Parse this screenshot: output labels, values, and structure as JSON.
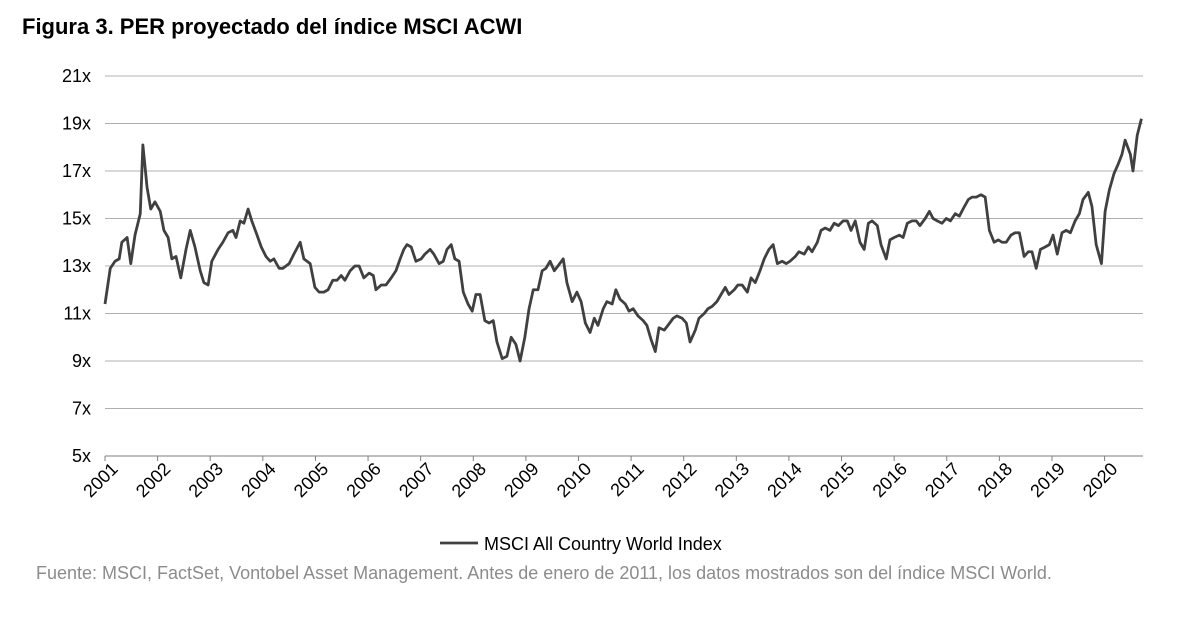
{
  "chart_data": {
    "type": "line",
    "title": "Figura 3. PER proyectado del índice MSCI ACWI",
    "source": "Fuente: MSCI, FactSet, Vontobel Asset Management. Antes de enero de 2011, los datos mostrados son del índice MSCI World.",
    "xlim": [
      2001,
      2020.73
    ],
    "xticks": [
      2001,
      2002,
      2003,
      2004,
      2005,
      2006,
      2007,
      2008,
      2009,
      2010,
      2011,
      2012,
      2013,
      2014,
      2015,
      2016,
      2017,
      2018,
      2019,
      2020
    ],
    "ylim": [
      5,
      21
    ],
    "yticks": [
      {
        "value": 5,
        "label": "5x"
      },
      {
        "value": 7,
        "label": "7x"
      },
      {
        "value": 9,
        "label": "9x"
      },
      {
        "value": 11,
        "label": "11x"
      },
      {
        "value": 13,
        "label": "13x"
      },
      {
        "value": 15,
        "label": "15x"
      },
      {
        "value": 17,
        "label": "17x"
      },
      {
        "value": 19,
        "label": "19x"
      },
      {
        "value": 21,
        "label": "21x"
      }
    ],
    "grid": true,
    "legend": "bottom",
    "x": [
      2001.0,
      2001.1,
      2001.19,
      2001.27,
      2001.32,
      2001.42,
      2001.49,
      2001.57,
      2001.67,
      2001.72,
      2001.8,
      2001.87,
      2001.95,
      2002.05,
      2002.12,
      2002.2,
      2002.27,
      2002.35,
      2002.44,
      2002.54,
      2002.62,
      2002.71,
      2002.81,
      2002.88,
      2002.96,
      2003.03,
      2003.15,
      2003.24,
      2003.34,
      2003.43,
      2003.49,
      2003.57,
      2003.64,
      2003.72,
      2003.79,
      2003.89,
      2003.97,
      2004.06,
      2004.14,
      2004.21,
      2004.31,
      2004.38,
      2004.5,
      2004.59,
      2004.71,
      2004.78,
      2004.9,
      2004.99,
      2005.07,
      2005.16,
      2005.24,
      2005.33,
      2005.41,
      2005.49,
      2005.56,
      2005.66,
      2005.75,
      2005.83,
      2005.92,
      2006.02,
      2006.1,
      2006.15,
      2006.25,
      2006.34,
      2006.44,
      2006.53,
      2006.61,
      2006.68,
      2006.74,
      2006.82,
      2006.91,
      2007.01,
      2007.08,
      2007.18,
      2007.25,
      2007.35,
      2007.43,
      2007.5,
      2007.58,
      2007.65,
      2007.73,
      2007.81,
      2007.9,
      2007.98,
      2008.05,
      2008.13,
      2008.22,
      2008.3,
      2008.38,
      2008.45,
      2008.55,
      2008.64,
      2008.72,
      2008.81,
      2008.89,
      2008.98,
      2009.06,
      2009.14,
      2009.23,
      2009.31,
      2009.38,
      2009.46,
      2009.54,
      2009.61,
      2009.71,
      2009.78,
      2009.88,
      2009.97,
      2010.05,
      2010.13,
      2010.22,
      2010.3,
      2010.37,
      2010.47,
      2010.54,
      2010.64,
      2010.71,
      2010.79,
      2010.89,
      2010.96,
      2011.04,
      2011.13,
      2011.23,
      2011.3,
      2011.38,
      2011.46,
      2011.53,
      2011.63,
      2011.7,
      2011.8,
      2011.87,
      2011.97,
      2012.05,
      2012.12,
      2012.22,
      2012.29,
      2012.39,
      2012.46,
      2012.54,
      2012.63,
      2012.71,
      2012.79,
      2012.86,
      2012.96,
      2013.03,
      2013.11,
      2013.21,
      2013.28,
      2013.36,
      2013.45,
      2013.53,
      2013.62,
      2013.7,
      2013.78,
      2013.87,
      2013.95,
      2014.02,
      2014.12,
      2014.19,
      2014.29,
      2014.37,
      2014.44,
      2014.54,
      2014.61,
      2014.69,
      2014.78,
      2014.86,
      2014.94,
      2015.03,
      2015.11,
      2015.18,
      2015.26,
      2015.35,
      2015.43,
      2015.51,
      2015.58,
      2015.68,
      2015.75,
      2015.85,
      2015.92,
      2016.0,
      2016.1,
      2016.17,
      2016.25,
      2016.34,
      2016.42,
      2016.49,
      2016.59,
      2016.67,
      2016.74,
      2016.82,
      2016.91,
      2016.99,
      2017.07,
      2017.16,
      2017.24,
      2017.31,
      2017.41,
      2017.48,
      2017.56,
      2017.65,
      2017.73,
      2017.81,
      2017.9,
      2017.98,
      2018.05,
      2018.13,
      2018.22,
      2018.3,
      2018.38,
      2018.47,
      2018.55,
      2018.62,
      2018.7,
      2018.78,
      2018.87,
      2018.95,
      2019.02,
      2019.1,
      2019.19,
      2019.27,
      2019.35,
      2019.44,
      2019.52,
      2019.59,
      2019.69,
      2019.76,
      2019.84,
      2019.94,
      2020.01,
      2020.09,
      2020.18,
      2020.26,
      2020.33,
      2020.39,
      2020.49,
      2020.54,
      2020.62,
      2020.7
    ],
    "series": [
      {
        "name": "MSCI All Country World Index",
        "color": "#404040",
        "values": [
          11.4,
          12.9,
          13.2,
          13.3,
          14.0,
          14.2,
          13.1,
          14.3,
          15.2,
          18.1,
          16.3,
          15.4,
          15.7,
          15.3,
          14.5,
          14.2,
          13.3,
          13.4,
          12.5,
          13.7,
          14.5,
          13.8,
          12.8,
          12.3,
          12.2,
          13.2,
          13.7,
          14.0,
          14.4,
          14.5,
          14.2,
          14.9,
          14.8,
          15.4,
          14.9,
          14.3,
          13.8,
          13.4,
          13.2,
          13.3,
          12.9,
          12.9,
          13.1,
          13.5,
          14.0,
          13.3,
          13.1,
          12.1,
          11.9,
          11.9,
          12.0,
          12.4,
          12.4,
          12.6,
          12.4,
          12.8,
          13.0,
          13.0,
          12.5,
          12.7,
          12.6,
          12.0,
          12.2,
          12.2,
          12.5,
          12.8,
          13.3,
          13.7,
          13.9,
          13.8,
          13.2,
          13.3,
          13.5,
          13.7,
          13.5,
          13.1,
          13.2,
          13.7,
          13.9,
          13.3,
          13.2,
          11.9,
          11.4,
          11.1,
          11.8,
          11.8,
          10.7,
          10.6,
          10.7,
          9.8,
          9.1,
          9.2,
          10.0,
          9.7,
          9.0,
          10.0,
          11.2,
          12.0,
          12.0,
          12.8,
          12.9,
          13.2,
          12.8,
          13.0,
          13.3,
          12.3,
          11.5,
          11.9,
          11.5,
          10.6,
          10.2,
          10.8,
          10.5,
          11.2,
          11.5,
          11.4,
          12.0,
          11.6,
          11.4,
          11.1,
          11.2,
          10.9,
          10.7,
          10.5,
          9.9,
          9.4,
          10.4,
          10.3,
          10.5,
          10.8,
          10.9,
          10.8,
          10.6,
          9.8,
          10.3,
          10.8,
          11.0,
          11.2,
          11.3,
          11.5,
          11.8,
          12.1,
          11.8,
          12.0,
          12.2,
          12.2,
          11.9,
          12.5,
          12.3,
          12.8,
          13.3,
          13.7,
          13.9,
          13.1,
          13.2,
          13.1,
          13.2,
          13.4,
          13.6,
          13.5,
          13.8,
          13.6,
          14.0,
          14.5,
          14.6,
          14.5,
          14.8,
          14.7,
          14.9,
          14.9,
          14.5,
          14.9,
          14.0,
          13.7,
          14.8,
          14.9,
          14.7,
          13.9,
          13.3,
          14.1,
          14.2,
          14.3,
          14.2,
          14.8,
          14.9,
          14.9,
          14.7,
          15.0,
          15.3,
          15.0,
          14.9,
          14.8,
          15.0,
          14.9,
          15.2,
          15.1,
          15.4,
          15.8,
          15.9,
          15.9,
          16.0,
          15.9,
          14.5,
          14.0,
          14.1,
          14.0,
          14.0,
          14.3,
          14.4,
          14.4,
          13.4,
          13.6,
          13.6,
          12.9,
          13.7,
          13.8,
          13.9,
          14.3,
          13.5,
          14.4,
          14.5,
          14.4,
          14.9,
          15.2,
          15.8,
          16.1,
          15.5,
          13.9,
          13.1,
          15.3,
          16.2,
          16.9,
          17.3,
          17.7,
          18.3,
          17.7,
          17.0,
          18.5,
          19.2
        ]
      }
    ]
  }
}
